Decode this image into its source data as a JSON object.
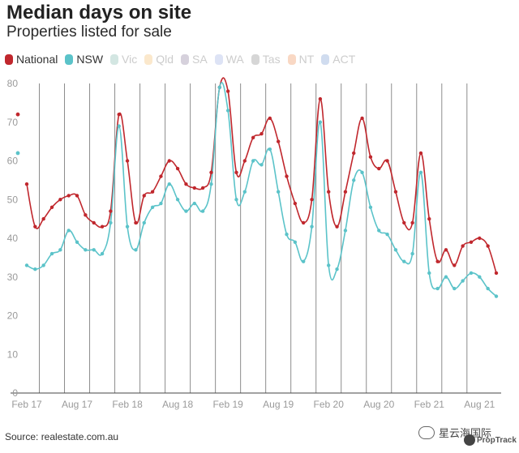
{
  "chart_data": {
    "type": "line",
    "title": "Median days on site",
    "subtitle": "Properties listed for sale",
    "source": "Source: realestate.com.au",
    "watermark": "星云海国际",
    "brand": "PropTrack",
    "ylim": [
      0,
      80
    ],
    "y_ticks": [
      0,
      10,
      20,
      30,
      40,
      50,
      60,
      70,
      80
    ],
    "x_ticks": [
      {
        "label": "Feb 17",
        "index": 0
      },
      {
        "label": "Aug 17",
        "index": 6
      },
      {
        "label": "Feb 18",
        "index": 12
      },
      {
        "label": "Aug 18",
        "index": 18
      },
      {
        "label": "Feb 19",
        "index": 24
      },
      {
        "label": "Aug 19",
        "index": 30
      },
      {
        "label": "Feb 20",
        "index": 36
      },
      {
        "label": "Aug 20",
        "index": 42
      },
      {
        "label": "Feb 21",
        "index": 48
      },
      {
        "label": "Aug 21",
        "index": 54
      }
    ],
    "first_month": "Feb 17",
    "n_points": 57,
    "grid": "vertical-yearly",
    "legend": [
      {
        "name": "National",
        "color": "#c0272d",
        "active": true
      },
      {
        "name": "NSW",
        "color": "#5bc3c9",
        "active": true
      },
      {
        "name": "Vic",
        "color": "#d3e6e2",
        "active": false
      },
      {
        "name": "Qld",
        "color": "#fbe8cc",
        "active": false
      },
      {
        "name": "SA",
        "color": "#d6d1dc",
        "active": false
      },
      {
        "name": "WA",
        "color": "#dde3f5",
        "active": false
      },
      {
        "name": "Tas",
        "color": "#d6d6d6",
        "active": false
      },
      {
        "name": "NT",
        "color": "#f9d8c4",
        "active": false
      },
      {
        "name": "ACT",
        "color": "#d0dcef",
        "active": false
      }
    ],
    "series": [
      {
        "name": "National",
        "color": "#c0272d",
        "start_label": 72,
        "values": [
          54,
          43,
          45,
          48,
          50,
          51,
          51,
          46,
          44,
          43,
          47,
          72,
          60,
          44,
          51,
          52,
          56,
          60,
          58,
          54,
          53,
          53,
          57,
          79,
          78,
          57,
          60,
          66,
          67,
          71,
          65,
          56,
          49,
          44,
          50,
          76,
          52,
          43,
          52,
          62,
          71,
          61,
          58,
          60,
          52,
          44,
          44,
          62,
          45,
          34,
          37,
          33,
          38,
          39,
          40,
          38,
          31
        ]
      },
      {
        "name": "NSW",
        "color": "#5bc3c9",
        "start_label": 62,
        "values": [
          33,
          32,
          33,
          36,
          37,
          42,
          39,
          37,
          37,
          36,
          44,
          69,
          43,
          37,
          44,
          48,
          49,
          54,
          50,
          47,
          49,
          47,
          54,
          79,
          73,
          50,
          52,
          60,
          59,
          63,
          52,
          41,
          39,
          34,
          43,
          70,
          33,
          32,
          42,
          55,
          57,
          48,
          42,
          41,
          37,
          34,
          36,
          57,
          31,
          27,
          30,
          27,
          29,
          31,
          30,
          27,
          25
        ]
      }
    ]
  }
}
